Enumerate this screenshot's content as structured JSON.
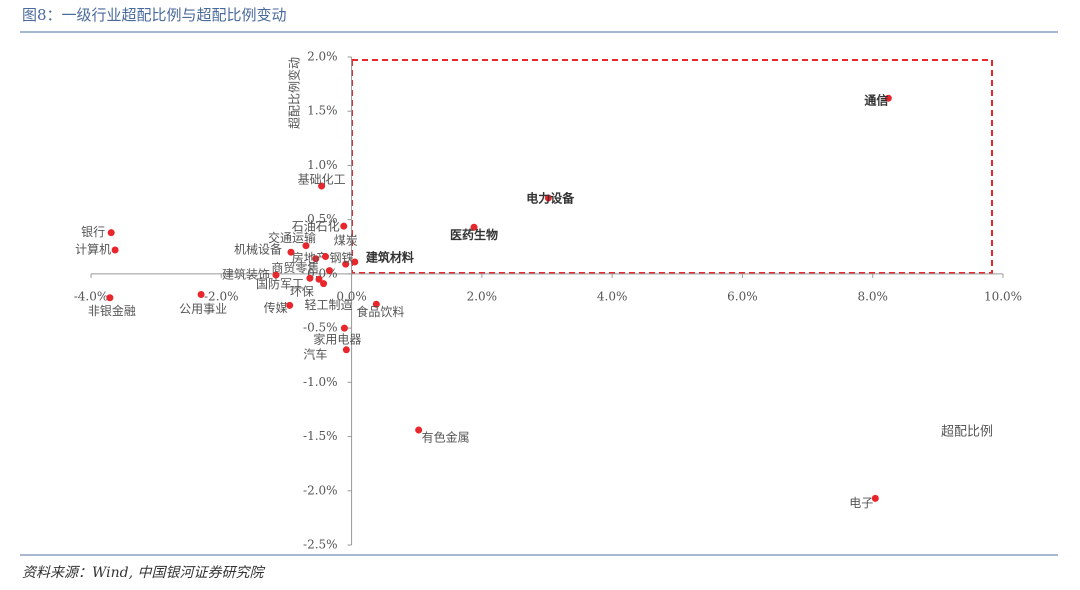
{
  "title": "图8：一级行业超配比例与超配比例变动",
  "source": "资料来源：Wind, 中国银河证券研究院",
  "chart_data": {
    "type": "scatter",
    "x_label": "超配比例",
    "y_label": "超配比例变动",
    "color": "#e8262b",
    "labels": [
      "通信",
      "电子",
      "电力设备",
      "医药生物",
      "建筑材料",
      "有色金属",
      "食品饮料",
      "基础化工",
      "石油石化",
      "煤炭",
      "银行",
      "计算机",
      "非银金融",
      "公用事业",
      "机械设备",
      "交通运输",
      "建筑装饰",
      "传媒",
      "家用电器",
      "汽车",
      "轻工制造",
      "环保",
      "国防军工",
      "商贸零售",
      "房地产",
      "钢铁"
    ],
    "bold": [
      "通信",
      "电力设备",
      "医药生物",
      "建筑材料"
    ],
    "x": [
      8.24,
      8.04,
      3.02,
      1.88,
      0.05,
      1.03,
      0.38,
      -0.46,
      -0.12,
      -0.09,
      -3.69,
      -3.63,
      -3.71,
      -2.31,
      -0.93,
      -0.7,
      -1.16,
      -0.95,
      -0.11,
      -0.08,
      -0.43,
      -0.64,
      -0.5,
      -0.34,
      -0.55,
      -0.4
    ],
    "y": [
      1.62,
      -2.07,
      0.7,
      0.43,
      0.11,
      -1.44,
      -0.28,
      0.81,
      0.44,
      0.09,
      0.38,
      0.22,
      -0.22,
      -0.19,
      0.2,
      0.26,
      -0.01,
      -0.29,
      -0.5,
      -0.7,
      -0.09,
      -0.04,
      -0.05,
      0.03,
      0.14,
      0.16
    ],
    "xlim": [
      -4,
      10
    ],
    "ylim": [
      -2.5,
      2.0
    ],
    "xticks": [
      {
        "value": -4,
        "label": "-4.0%"
      },
      {
        "value": -2,
        "label": "-2.0%"
      },
      {
        "value": 0,
        "label": "0.0%"
      },
      {
        "value": 2,
        "label": "2.0%"
      },
      {
        "value": 4,
        "label": "4.0%"
      },
      {
        "value": 6,
        "label": "6.0%"
      },
      {
        "value": 8,
        "label": "8.0%"
      },
      {
        "value": 10,
        "label": "10.0%"
      }
    ],
    "yticks": [
      {
        "value": 2.0,
        "label": "2.0%"
      },
      {
        "value": 1.5,
        "label": "1.5%"
      },
      {
        "value": 1.0,
        "label": "1.0%"
      },
      {
        "value": 0.5,
        "label": "0.5%"
      },
      {
        "value": 0,
        "label": "0.0%"
      },
      {
        "value": -0.5,
        "label": "-0.5%"
      },
      {
        "value": -1.0,
        "label": "-1.0%"
      },
      {
        "value": -1.5,
        "label": "-1.5%"
      },
      {
        "value": -2.0,
        "label": "-2.0%"
      },
      {
        "value": -2.5,
        "label": "-2.5%"
      }
    ]
  }
}
